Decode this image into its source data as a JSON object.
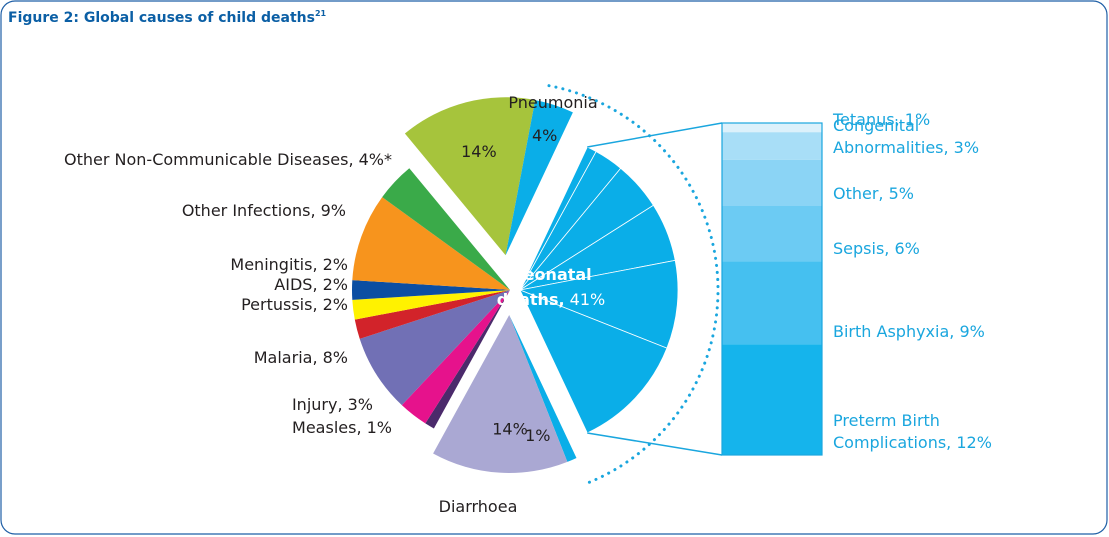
{
  "chart_data": {
    "type": "pie",
    "title": "Figure 2: Global causes of child deaths",
    "title_footnote": "21",
    "categories": [
      "Pneumonia",
      null,
      null,
      null,
      "Diarrhoea",
      null,
      null,
      null,
      null,
      null,
      null,
      null,
      null
    ],
    "values": [
      14,
      4,
      36,
      1,
      14,
      1,
      3,
      8,
      2,
      2,
      2,
      9,
      4
    ],
    "value_labels": [
      "14%",
      "4%",
      null,
      "1%",
      "14%",
      "Measles, 1%",
      "Injury, 3%",
      "Malaria, 8%",
      "Pertussis, 2%",
      "AIDS, 2%",
      "Meningitis, 2%",
      "Other Infections, 9%",
      "Other Non-Communicable Diseases, 4%*"
    ],
    "colors": [
      "#a6c43c",
      "#0aaee8",
      "#0aaee8",
      "#0aaee8",
      "#aaa8d3",
      "#4b2a6b",
      "#e6128c",
      "#7170b5",
      "#d2232a",
      "#fff200",
      "#0c4ea2",
      "#f7941d",
      "#3aaa49"
    ],
    "neonatal": {
      "label": "Neonatal deaths,",
      "value": 41,
      "value_label": "41%"
    },
    "breakdown": {
      "value_labels": [
        "Tetanus, 1%",
        "Congenital Abnormalities, 3%",
        "Other, 5%",
        "Sepsis, 6%",
        "Birth Asphyxia, 9%",
        "Preterm Birth Complications, 12%"
      ],
      "values": [
        1,
        3,
        5,
        6,
        9,
        12
      ],
      "colors": [
        "#dcf1fb",
        "#a8def7",
        "#8bd4f5",
        "#6ccbf3",
        "#45c0f0",
        "#15b4ec"
      ]
    }
  }
}
